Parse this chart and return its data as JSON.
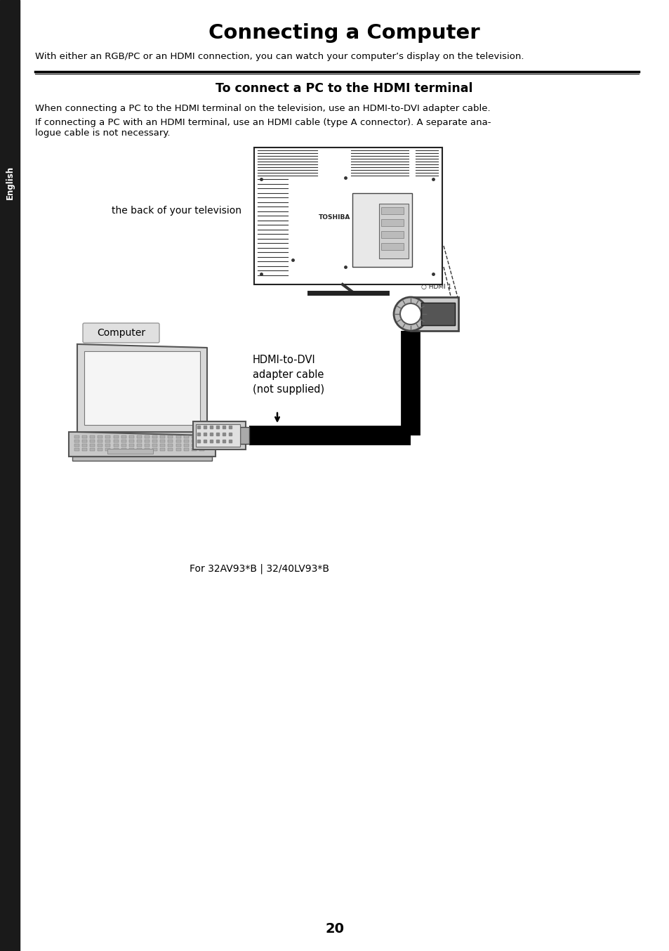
{
  "title": "Connecting a Computer",
  "subtitle": "With either an RGB/PC or an HDMI connection, you can watch your computer’s display on the television.",
  "section_title": "To connect a PC to the HDMI terminal",
  "body_text_1": "When connecting a PC to the HDMI terminal on the television, use an HDMI-to-DVI adapter cable.",
  "body_text_2": "If connecting a PC with an HDMI terminal, use an HDMI cable (type A connector). A separate ana-\nlogue cable is not necessary.",
  "label_tv": "the back of your television",
  "label_computer": "Computer",
  "label_cable": "HDMI-to-DVI\nadapter cable\n(not supplied)",
  "label_model": "For 32AV93*B | 32/40LV93*B",
  "page_number": "20",
  "bg_color": "#ffffff",
  "text_color": "#000000",
  "sidebar_bg": "#1a1a1a",
  "sidebar_text": "English",
  "hdmi_label": "○ HDMI 1"
}
